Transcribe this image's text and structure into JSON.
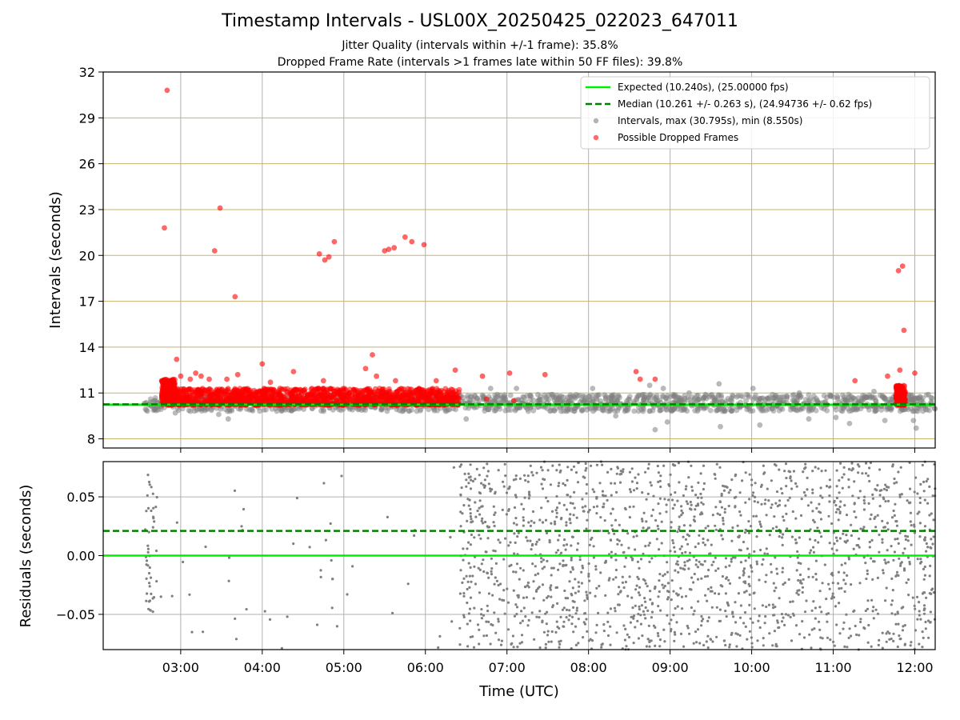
{
  "title": "Timestamp Intervals - USL00X_20250425_022023_647011",
  "subtitle_1": "Jitter Quality (intervals within +/-1 frame): 35.8%",
  "subtitle_2": "Dropped Frame Rate (intervals >1 frames late within 50 FF files): 39.8%",
  "colors": {
    "expected": "#00ee00",
    "median": "#007f00",
    "intervals": "#808080",
    "dropped": "#ff0000",
    "hgrid_top": "#c8b36b",
    "grid": "#b0b0b0"
  },
  "chart_data": [
    {
      "type": "scatter",
      "panel": "top",
      "ylabel": "Intervals (seconds)",
      "ylim": [
        7.4,
        32
      ],
      "xlim_hours": [
        2.05,
        12.25
      ],
      "yticks": [
        "8",
        "11",
        "14",
        "17",
        "20",
        "23",
        "26",
        "29",
        "32"
      ],
      "xticks": [
        "03:00",
        "04:00",
        "05:00",
        "06:00",
        "07:00",
        "08:00",
        "09:00",
        "10:00",
        "11:00",
        "12:00"
      ],
      "legend_position": "top-right",
      "lines": [
        {
          "name": "Expected (10.240s), (25.00000 fps)",
          "value": 10.24,
          "style": "solid",
          "color": "#00ee00"
        },
        {
          "name": "Median (10.261 +/- 0.263 s), (24.94736 +/- 0.62 fps)",
          "value": 10.261,
          "style": "dashed",
          "color": "#007f00"
        }
      ],
      "series": [
        {
          "name": "Intervals, max (30.795s), min (8.550s)",
          "color": "#808080",
          "approximate": true,
          "x_range": [
            "02:33",
            "12:15"
          ],
          "y_band": [
            9.8,
            10.9
          ],
          "outliers": [
            {
              "x": "02:56",
              "y": 9.7
            },
            {
              "x": "03:28",
              "y": 9.6
            },
            {
              "x": "03:35",
              "y": 9.3
            },
            {
              "x": "06:15",
              "y": 9.8
            },
            {
              "x": "06:30",
              "y": 9.3
            },
            {
              "x": "06:48",
              "y": 11.3
            },
            {
              "x": "07:07",
              "y": 11.3
            },
            {
              "x": "07:36",
              "y": 10.7
            },
            {
              "x": "08:03",
              "y": 11.3
            },
            {
              "x": "08:20",
              "y": 9.5
            },
            {
              "x": "08:45",
              "y": 11.5
            },
            {
              "x": "08:49",
              "y": 8.6
            },
            {
              "x": "08:55",
              "y": 11.3
            },
            {
              "x": "08:58",
              "y": 9.1
            },
            {
              "x": "09:14",
              "y": 11.0
            },
            {
              "x": "09:26",
              "y": 10.9
            },
            {
              "x": "09:36",
              "y": 11.6
            },
            {
              "x": "09:37",
              "y": 8.8
            },
            {
              "x": "10:01",
              "y": 11.3
            },
            {
              "x": "10:06",
              "y": 8.9
            },
            {
              "x": "10:35",
              "y": 11.0
            },
            {
              "x": "10:42",
              "y": 9.3
            },
            {
              "x": "11:02",
              "y": 9.4
            },
            {
              "x": "11:12",
              "y": 9.0
            },
            {
              "x": "11:30",
              "y": 11.1
            },
            {
              "x": "11:38",
              "y": 9.2
            },
            {
              "x": "11:59",
              "y": 9.2
            },
            {
              "x": "12:01",
              "y": 8.7
            },
            {
              "x": "12:10",
              "y": 10.9
            }
          ]
        },
        {
          "name": "Possible Dropped Frames",
          "color": "#ff0000",
          "approximate": true,
          "band_regions": [
            {
              "x_start": "02:46",
              "x_end": "06:25",
              "y_band": [
                10.2,
                11.3
              ]
            },
            {
              "x_start": "02:46",
              "x_end": "02:56",
              "y_band": [
                10.6,
                11.9
              ]
            },
            {
              "x_start": "11:46",
              "x_end": "11:53",
              "y_band": [
                10.2,
                11.5
              ]
            }
          ],
          "points": [
            {
              "x": "02:50",
              "y": 30.8
            },
            {
              "x": "02:48",
              "y": 21.8
            },
            {
              "x": "03:29",
              "y": 23.1
            },
            {
              "x": "03:25",
              "y": 20.3
            },
            {
              "x": "03:40",
              "y": 17.3
            },
            {
              "x": "02:57",
              "y": 13.2
            },
            {
              "x": "03:00",
              "y": 12.1
            },
            {
              "x": "03:07",
              "y": 11.9
            },
            {
              "x": "03:11",
              "y": 12.3
            },
            {
              "x": "03:15",
              "y": 12.1
            },
            {
              "x": "03:21",
              "y": 11.9
            },
            {
              "x": "03:34",
              "y": 11.9
            },
            {
              "x": "03:42",
              "y": 12.2
            },
            {
              "x": "04:00",
              "y": 12.9
            },
            {
              "x": "04:06",
              "y": 11.7
            },
            {
              "x": "04:23",
              "y": 12.4
            },
            {
              "x": "04:42",
              "y": 20.1
            },
            {
              "x": "04:46",
              "y": 19.7
            },
            {
              "x": "04:49",
              "y": 19.9
            },
            {
              "x": "04:53",
              "y": 20.9
            },
            {
              "x": "04:45",
              "y": 11.8
            },
            {
              "x": "05:16",
              "y": 12.6
            },
            {
              "x": "05:21",
              "y": 13.5
            },
            {
              "x": "05:24",
              "y": 12.1
            },
            {
              "x": "05:30",
              "y": 20.3
            },
            {
              "x": "05:33",
              "y": 20.4
            },
            {
              "x": "05:37",
              "y": 20.5
            },
            {
              "x": "05:45",
              "y": 21.2
            },
            {
              "x": "05:50",
              "y": 20.9
            },
            {
              "x": "05:59",
              "y": 20.7
            },
            {
              "x": "05:38",
              "y": 11.8
            },
            {
              "x": "06:08",
              "y": 11.8
            },
            {
              "x": "06:22",
              "y": 12.5
            },
            {
              "x": "06:42",
              "y": 12.1
            },
            {
              "x": "06:45",
              "y": 10.6
            },
            {
              "x": "07:02",
              "y": 12.3
            },
            {
              "x": "07:05",
              "y": 10.5
            },
            {
              "x": "07:28",
              "y": 12.2
            },
            {
              "x": "08:35",
              "y": 12.4
            },
            {
              "x": "08:38",
              "y": 11.9
            },
            {
              "x": "08:49",
              "y": 11.9
            },
            {
              "x": "11:16",
              "y": 11.8
            },
            {
              "x": "11:40",
              "y": 12.1
            },
            {
              "x": "11:48",
              "y": 19.0
            },
            {
              "x": "11:51",
              "y": 19.3
            },
            {
              "x": "11:52",
              "y": 15.1
            },
            {
              "x": "11:49",
              "y": 12.5
            },
            {
              "x": "12:00",
              "y": 12.3
            }
          ]
        }
      ]
    },
    {
      "type": "scatter",
      "panel": "bottom",
      "xlabel": "Time (UTC)",
      "ylabel": "Residuals (seconds)",
      "ylim": [
        -0.08,
        0.08
      ],
      "yticks": [
        "−0.05",
        "0.00",
        "0.05"
      ],
      "xticks": [
        "03:00",
        "04:00",
        "05:00",
        "06:00",
        "07:00",
        "08:00",
        "09:00",
        "10:00",
        "11:00",
        "12:00"
      ],
      "lines": [
        {
          "name": "Expected",
          "value": 0.0,
          "style": "solid",
          "color": "#00ee00"
        },
        {
          "name": "Median",
          "value": 0.021,
          "style": "dashed",
          "color": "#007f00"
        }
      ],
      "series": [
        {
          "name": "Residuals",
          "color": "#808080",
          "approximate": true,
          "y_range": [
            -0.08,
            0.08
          ],
          "clusters": [
            {
              "x_start": "02:34",
              "x_end": "02:43",
              "density": "high",
              "y_range": [
                -0.05,
                0.07
              ]
            },
            {
              "x_start": "02:45",
              "x_end": "03:35",
              "density": "sparse"
            },
            {
              "x_start": "03:35",
              "x_end": "03:47",
              "density": "medium"
            },
            {
              "x_start": "03:47",
              "x_end": "04:40",
              "density": "sparse"
            },
            {
              "x_start": "04:40",
              "x_end": "04:53",
              "density": "medium"
            },
            {
              "x_start": "04:53",
              "x_end": "06:25",
              "density": "sparse"
            },
            {
              "x_start": "06:25",
              "x_end": "12:15",
              "density": "high"
            }
          ]
        }
      ]
    }
  ]
}
